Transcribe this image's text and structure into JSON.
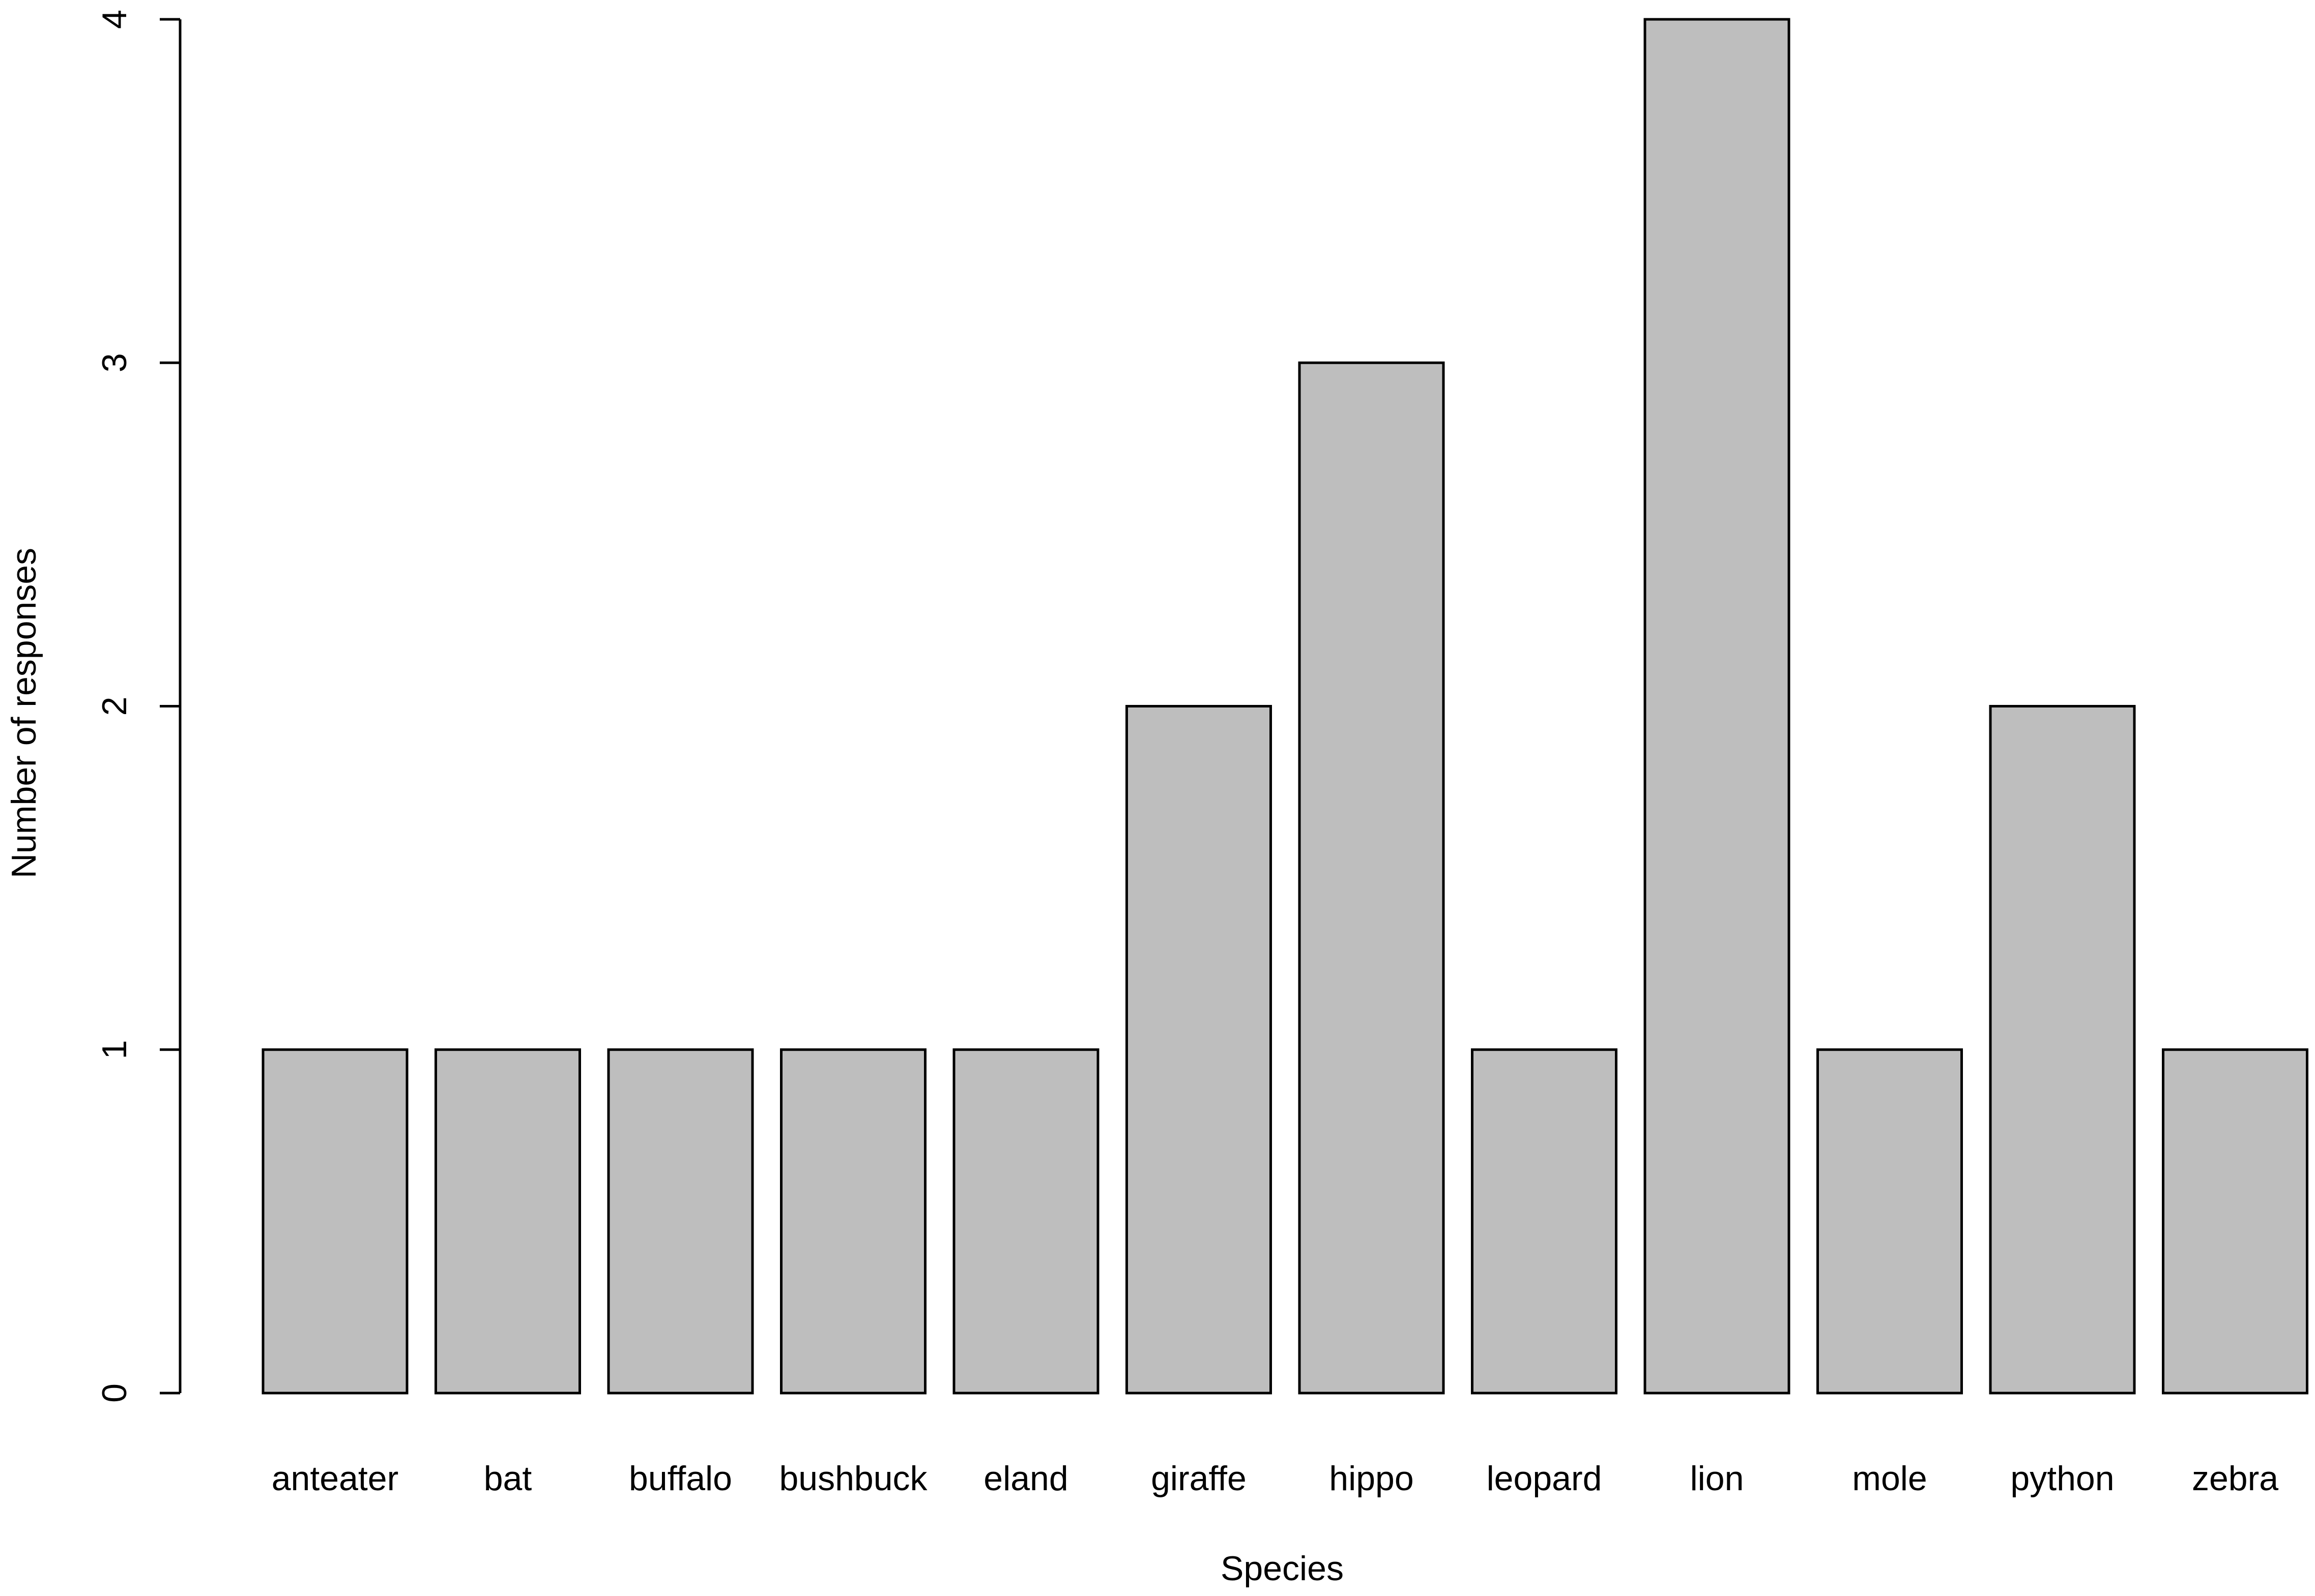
{
  "chart_data": {
    "type": "bar",
    "title": "",
    "xlabel": "Species",
    "ylabel": "Number of responses",
    "categories": [
      "anteater",
      "bat",
      "buffalo",
      "bushbuck",
      "eland",
      "giraffe",
      "hippo",
      "leopard",
      "lion",
      "mole",
      "python",
      "zebra"
    ],
    "values": [
      1,
      1,
      1,
      1,
      1,
      2,
      3,
      1,
      4,
      1,
      2,
      1
    ],
    "ylim": [
      0,
      4
    ],
    "yticks": [
      "0",
      "1",
      "2",
      "3",
      "4"
    ],
    "grid": false,
    "legend": "none",
    "colors": {
      "bar_fill": "#bebebe",
      "bar_stroke": "#000000",
      "axis": "#000000"
    }
  }
}
